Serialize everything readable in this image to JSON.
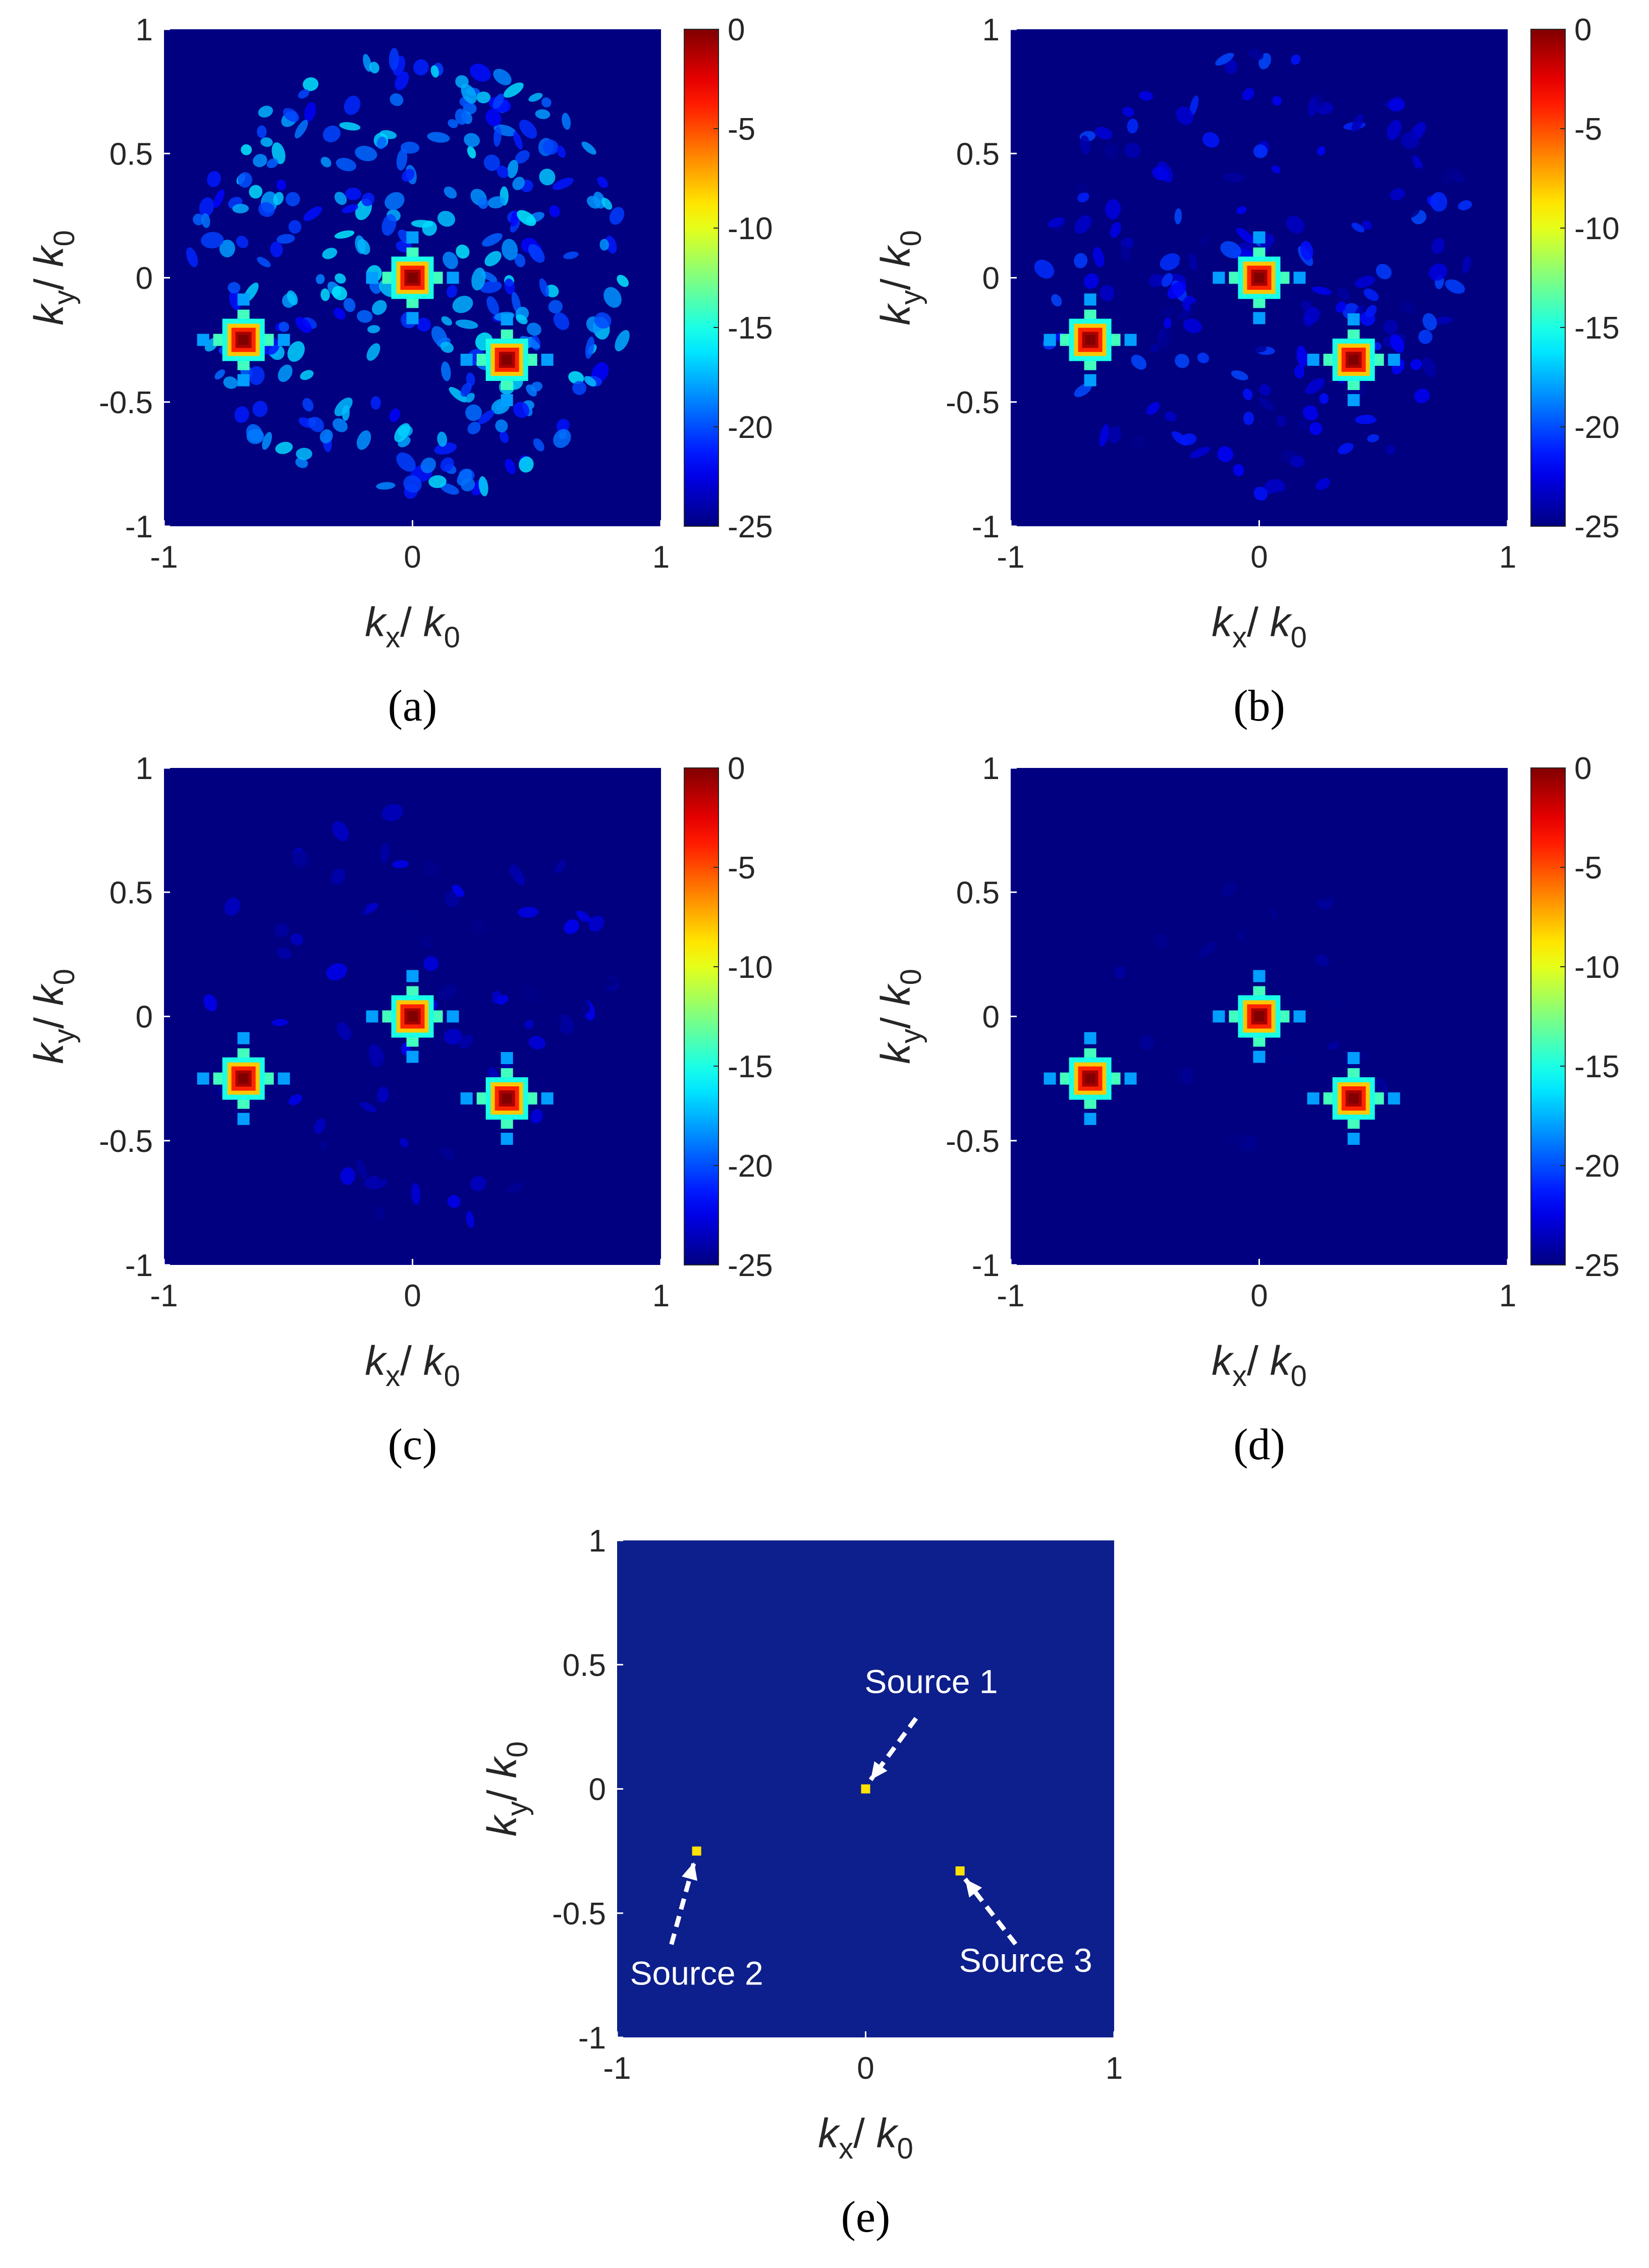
{
  "chart_data": [
    {
      "type": "heatmap",
      "panel_label": "(a)",
      "xlabel": {
        "base": "k",
        "sub": "x",
        "sep": "/ ",
        "den_base": "k",
        "den_sub": "0"
      },
      "ylabel": {
        "base": "k",
        "sub": "y",
        "sep": "/ ",
        "den_base": "k",
        "den_sub": "0"
      },
      "xlim": [
        -1,
        1
      ],
      "ylim": [
        -1,
        1
      ],
      "xticks": [
        "-1",
        "0",
        "1"
      ],
      "yticks": [
        "1",
        "0.5",
        "0",
        "-0.5",
        "-1"
      ],
      "colorbar": {
        "range": [
          -25,
          0
        ],
        "ticks": [
          "0",
          "-5",
          "-10",
          "-15",
          "-20",
          "-25"
        ]
      },
      "peaks": [
        {
          "kx": 0.0,
          "ky": 0.0,
          "level": 0
        },
        {
          "kx": -0.68,
          "ky": -0.25,
          "level": 0
        },
        {
          "kx": 0.38,
          "ky": -0.33,
          "level": 0
        }
      ],
      "sidelobe_level": -16,
      "sidelobe_radius": 0.9
    },
    {
      "type": "heatmap",
      "panel_label": "(b)",
      "xlabel": {
        "base": "k",
        "sub": "x",
        "sep": "/ ",
        "den_base": "k",
        "den_sub": "0"
      },
      "ylabel": {
        "base": "k",
        "sub": "y",
        "sep": "/ ",
        "den_base": "k",
        "den_sub": "0"
      },
      "xlim": [
        -1,
        1
      ],
      "ylim": [
        -1,
        1
      ],
      "xticks": [
        "-1",
        "0",
        "1"
      ],
      "yticks": [
        "1",
        "0.5",
        "0",
        "-0.5",
        "-1"
      ],
      "colorbar": {
        "range": [
          -25,
          0
        ],
        "ticks": [
          "0",
          "-5",
          "-10",
          "-15",
          "-20",
          "-25"
        ]
      },
      "peaks": [
        {
          "kx": 0.0,
          "ky": 0.0,
          "level": 0
        },
        {
          "kx": -0.68,
          "ky": -0.25,
          "level": 0
        },
        {
          "kx": 0.38,
          "ky": -0.33,
          "level": 0
        }
      ],
      "sidelobe_level": -20,
      "sidelobe_radius": 0.9
    },
    {
      "type": "heatmap",
      "panel_label": "(c)",
      "xlabel": {
        "base": "k",
        "sub": "x",
        "sep": "/ ",
        "den_base": "k",
        "den_sub": "0"
      },
      "ylabel": {
        "base": "k",
        "sub": "y",
        "sep": "/ ",
        "den_base": "k",
        "den_sub": "0"
      },
      "xlim": [
        -1,
        1
      ],
      "ylim": [
        -1,
        1
      ],
      "xticks": [
        "-1",
        "0",
        "1"
      ],
      "yticks": [
        "1",
        "0.5",
        "0",
        "-0.5",
        "-1"
      ],
      "colorbar": {
        "range": [
          -25,
          0
        ],
        "ticks": [
          "0",
          "-5",
          "-10",
          "-15",
          "-20",
          "-25"
        ]
      },
      "peaks": [
        {
          "kx": 0.0,
          "ky": 0.0,
          "level": 0
        },
        {
          "kx": -0.68,
          "ky": -0.25,
          "level": 0
        },
        {
          "kx": 0.38,
          "ky": -0.33,
          "level": 0
        }
      ],
      "sidelobe_level": -22,
      "sidelobe_radius": 0.85
    },
    {
      "type": "heatmap",
      "panel_label": "(d)",
      "xlabel": {
        "base": "k",
        "sub": "x",
        "sep": "/ ",
        "den_base": "k",
        "den_sub": "0"
      },
      "ylabel": {
        "base": "k",
        "sub": "y",
        "sep": "/ ",
        "den_base": "k",
        "den_sub": "0"
      },
      "xlim": [
        -1,
        1
      ],
      "ylim": [
        -1,
        1
      ],
      "xticks": [
        "-1",
        "0",
        "1"
      ],
      "yticks": [
        "1",
        "0.5",
        "0",
        "-0.5",
        "-1"
      ],
      "colorbar": {
        "range": [
          -25,
          0
        ],
        "ticks": [
          "0",
          "-5",
          "-10",
          "-15",
          "-20",
          "-25"
        ]
      },
      "peaks": [
        {
          "kx": 0.0,
          "ky": 0.0,
          "level": 0
        },
        {
          "kx": -0.68,
          "ky": -0.25,
          "level": 0
        },
        {
          "kx": 0.38,
          "ky": -0.33,
          "level": 0
        }
      ],
      "sidelobe_level": -24,
      "sidelobe_radius": 0.6
    },
    {
      "type": "heatmap",
      "panel_label": "(e)",
      "xlabel": {
        "base": "k",
        "sub": "x",
        "sep": "/ ",
        "den_base": "k",
        "den_sub": "0"
      },
      "ylabel": {
        "base": "k",
        "sub": "y",
        "sep": "/ ",
        "den_base": "k",
        "den_sub": "0"
      },
      "xlim": [
        -1,
        1
      ],
      "ylim": [
        -1,
        1
      ],
      "xticks": [
        "-1",
        "0",
        "1"
      ],
      "yticks": [
        "1",
        "0.5",
        "0",
        "-0.5",
        "-1"
      ],
      "background_color": "#0d1f8c",
      "marker_color": "#ffe100",
      "sources": [
        {
          "name": "Source 1",
          "kx": 0.0,
          "ky": 0.0
        },
        {
          "name": "Source 2",
          "kx": -0.68,
          "ky": -0.25
        },
        {
          "name": "Source 3",
          "kx": 0.38,
          "ky": -0.33
        }
      ]
    }
  ]
}
